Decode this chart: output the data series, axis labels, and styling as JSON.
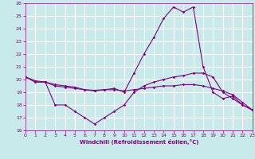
{
  "xlabel": "Windchill (Refroidissement éolien,°C)",
  "bg_color": "#c8eaea",
  "grid_color": "#ffffff",
  "line_color": "#800080",
  "xmin": 0,
  "xmax": 23,
  "ymin": 16,
  "ymax": 26,
  "series": {
    "line1": {
      "x": [
        0,
        1,
        2,
        3,
        4,
        5,
        6,
        7,
        8,
        9,
        10,
        11,
        12,
        13,
        14,
        15,
        16,
        17,
        18,
        19,
        20,
        21,
        22,
        23
      ],
      "y": [
        20.2,
        19.8,
        19.8,
        19.5,
        19.4,
        19.3,
        19.2,
        19.15,
        19.2,
        19.3,
        19.0,
        20.5,
        22.0,
        23.3,
        24.8,
        25.7,
        25.3,
        25.7,
        21.0,
        19.0,
        18.5,
        18.7,
        18.0,
        17.6
      ]
    },
    "line2": {
      "x": [
        0,
        1,
        2,
        3,
        4,
        5,
        6,
        7,
        8,
        9,
        10,
        11,
        12,
        13,
        14,
        15,
        16,
        17,
        18,
        19,
        20,
        21,
        22,
        23
      ],
      "y": [
        20.2,
        19.8,
        19.8,
        18.0,
        18.0,
        17.5,
        17.0,
        16.5,
        17.0,
        17.5,
        18.0,
        19.0,
        19.5,
        19.8,
        20.0,
        20.2,
        20.3,
        20.5,
        20.5,
        20.2,
        19.0,
        18.5,
        18.0,
        17.6
      ]
    },
    "line3": {
      "x": [
        0,
        1,
        2,
        3,
        4,
        5,
        6,
        7,
        8,
        9,
        10,
        11,
        12,
        13,
        14,
        15,
        16,
        17,
        18,
        19,
        20,
        21,
        22,
        23
      ],
      "y": [
        20.2,
        19.9,
        19.8,
        19.6,
        19.5,
        19.4,
        19.2,
        19.1,
        19.2,
        19.2,
        19.1,
        19.2,
        19.3,
        19.4,
        19.5,
        19.5,
        19.6,
        19.6,
        19.5,
        19.3,
        19.1,
        18.8,
        18.2,
        17.6
      ]
    }
  }
}
